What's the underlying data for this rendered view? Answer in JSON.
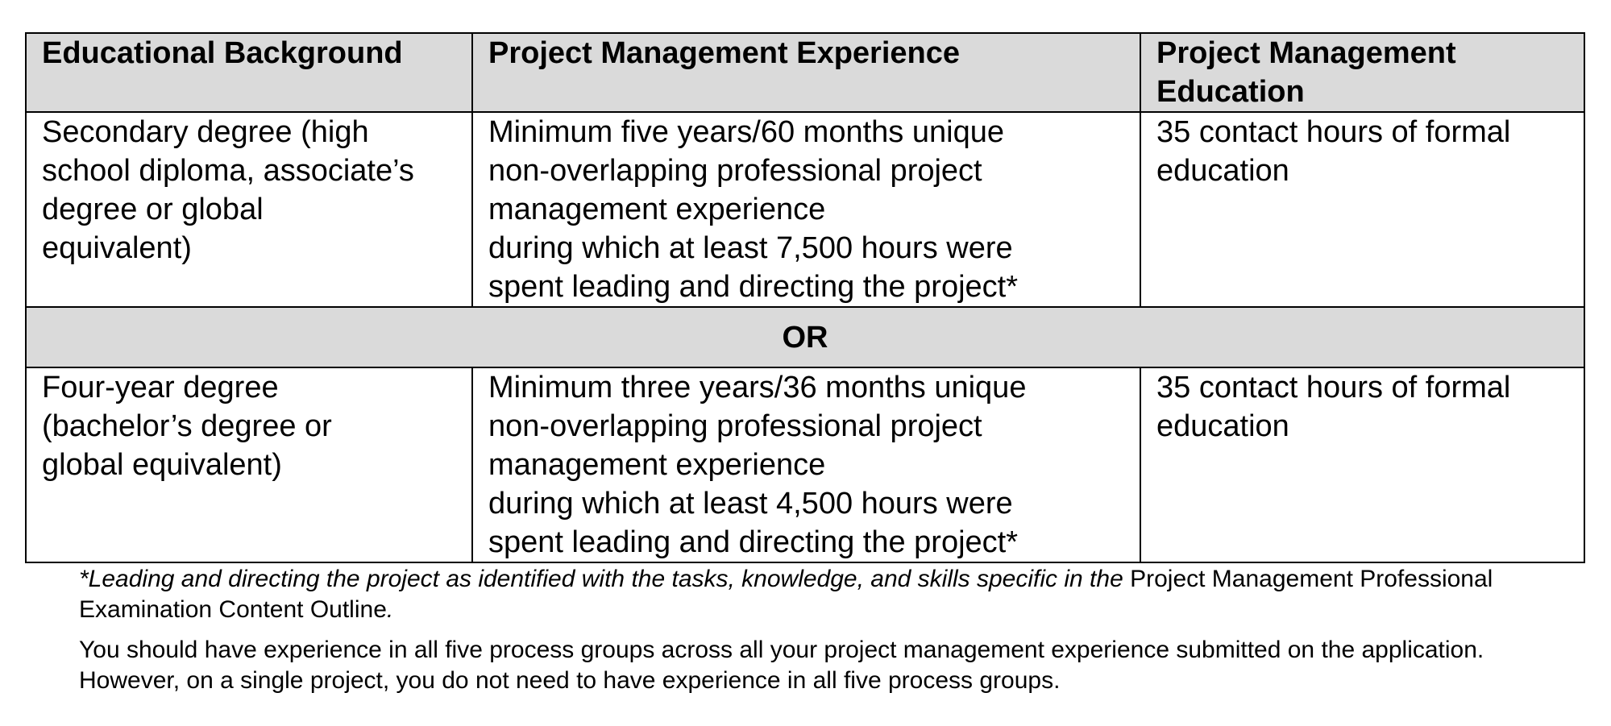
{
  "table": {
    "headers": [
      "Educational Background",
      "Project Management Experience",
      [
        "Project Management",
        "Education"
      ]
    ],
    "rows": [
      {
        "education": [
          "Secondary degree (high",
          "school diploma, associate’s",
          "degree or global",
          "equivalent)"
        ],
        "experience": [
          "Minimum five years/60 months unique",
          "non-overlapping professional project",
          "management experience",
          "during which at least 7,500 hours were",
          "spent leading and directing the project*"
        ],
        "pm_education": [
          "35 contact hours of formal",
          "education"
        ]
      },
      {
        "education": [
          "Four-year degree",
          "(bachelor’s degree or",
          "global equivalent)"
        ],
        "experience": [
          "Minimum three years/36 months unique",
          "non-overlapping professional project",
          "management experience",
          "during which at least 4,500 hours were",
          "spent leading and directing the project*"
        ],
        "pm_education": [
          "35 contact hours of formal",
          "education"
        ]
      }
    ],
    "or_label": "OR"
  },
  "notes": {
    "footnote_italic": "*Leading and directing the project as identified with the tasks, knowledge, and skills specific in the ",
    "footnote_title": "Project Management Professional Examination Content Outline",
    "footnote_end": ".",
    "process_note": "You should have experience in all five process groups across all your project management experience submitted on the application. However, on a single project, you do not need to have experience in all five process groups."
  }
}
